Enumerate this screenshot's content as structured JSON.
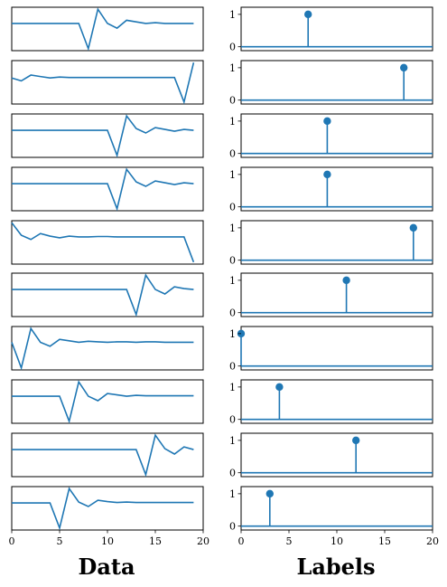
{
  "chart_data": {
    "type": "line",
    "columns": {
      "left": {
        "xlabel": "Data",
        "xlim": [
          0,
          20
        ],
        "xticks": [
          "0",
          "5",
          "10",
          "15",
          "20"
        ]
      },
      "right": {
        "xlabel": "Labels",
        "xlim": [
          0,
          20
        ],
        "xticks": [
          "0",
          "5",
          "10",
          "15",
          "20"
        ],
        "ylim": [
          -0.12,
          1.22
        ],
        "yticks": [
          "0",
          "1"
        ]
      }
    },
    "data_series": [
      [
        0,
        0,
        0,
        0,
        0,
        0,
        0,
        0,
        -3.2,
        1.8,
        0,
        -0.6,
        0.4,
        0.2,
        0,
        0.1,
        0,
        0,
        0,
        0
      ],
      [
        0.0,
        -0.3,
        0.3,
        0.15,
        0.0,
        0.1,
        0.05,
        0.05,
        0.05,
        0.05,
        0.05,
        0.05,
        0.05,
        0.05,
        0.05,
        0.05,
        0.05,
        0.05,
        -2.5,
        1.6
      ],
      [
        0,
        0,
        0,
        0,
        0,
        0,
        0,
        0,
        0,
        0,
        0,
        -2.8,
        1.6,
        0.2,
        -0.3,
        0.3,
        0.1,
        -0.1,
        0.1,
        0
      ],
      [
        0,
        0,
        0,
        0,
        0,
        0,
        0,
        0,
        0,
        0,
        0,
        -2.8,
        1.6,
        0.2,
        -0.3,
        0.3,
        0.1,
        -0.1,
        0.1,
        0
      ],
      [
        2.2,
        0.7,
        0.2,
        0.9,
        0.6,
        0.4,
        0.6,
        0.5,
        0.5,
        0.55,
        0.55,
        0.5,
        0.5,
        0.5,
        0.5,
        0.5,
        0.5,
        0.5,
        0.5,
        -2.5
      ],
      [
        0,
        0,
        0,
        0,
        0,
        0,
        0,
        0,
        0,
        0,
        0,
        0,
        0,
        -2.8,
        1.6,
        0.0,
        -0.5,
        0.3,
        0.1,
        0.0
      ],
      [
        0.0,
        -2.6,
        1.4,
        0.0,
        -0.4,
        0.3,
        0.15,
        0.0,
        0.1,
        0.05,
        0.0,
        0.05,
        0.05,
        0.0,
        0.05,
        0.05,
        0.0,
        0.0,
        0.0,
        0.0
      ],
      [
        0,
        0,
        0,
        0,
        0,
        0,
        -2.8,
        1.6,
        0,
        -0.5,
        0.3,
        0.15,
        0.0,
        0.1,
        0.05,
        0.05,
        0.05,
        0.05,
        0.05,
        0.05
      ],
      [
        0,
        0,
        0,
        0,
        0,
        0,
        0,
        0,
        0,
        0,
        0,
        0,
        0,
        0,
        -2.8,
        1.6,
        0.1,
        -0.5,
        0.3,
        0.0
      ],
      [
        0,
        0,
        0,
        0,
        0,
        -2.8,
        1.6,
        0.1,
        -0.4,
        0.3,
        0.15,
        0.05,
        0.1,
        0.05,
        0.05,
        0.05,
        0.05,
        0.05,
        0.05,
        0.05
      ]
    ],
    "labels": [
      7,
      17,
      9,
      9,
      18,
      11,
      0,
      4,
      12,
      3
    ],
    "label_value": 1,
    "series_color": "#1f77b4"
  }
}
